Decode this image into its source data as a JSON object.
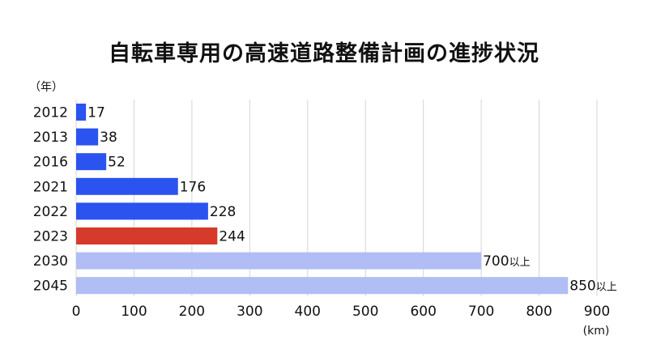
{
  "chart_data": {
    "type": "bar",
    "orientation": "horizontal",
    "title": "自転車専用の高速道路整備計画の進捗状況",
    "ylabel": "（年）",
    "xlabel": "(km)",
    "xlim": [
      0,
      900
    ],
    "xticks": [
      0,
      100,
      200,
      300,
      400,
      500,
      600,
      700,
      800,
      900
    ],
    "grid": "vertical",
    "categories": [
      "2012",
      "2013",
      "2016",
      "2021",
      "2022",
      "2023",
      "2030",
      "2045"
    ],
    "values": [
      17,
      38,
      52,
      176,
      228,
      244,
      700,
      850
    ],
    "value_labels": [
      "17",
      "38",
      "52",
      "176",
      "228",
      "244",
      "700",
      "850"
    ],
    "value_suffixes": [
      "",
      "",
      "",
      "",
      "",
      "",
      "以上",
      "以上"
    ],
    "bar_status": [
      "actual",
      "actual",
      "actual",
      "actual",
      "actual",
      "current",
      "planned",
      "planned"
    ],
    "colors": {
      "actual": "#2a53f0",
      "current": "#d63a2a",
      "planned": "#b1bdf5",
      "grid": "#d4d4d4"
    }
  }
}
